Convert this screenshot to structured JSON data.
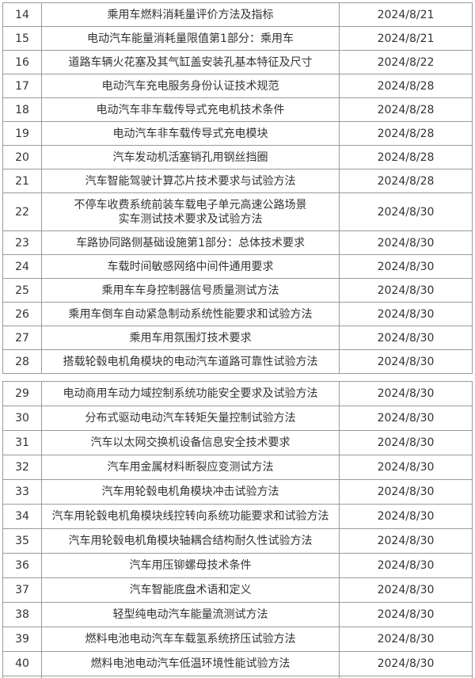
{
  "tables": [
    {
      "rows": [
        {
          "no": "14",
          "name": "乘用车燃料消耗量评价方法及指标",
          "date": "2024/8/21"
        },
        {
          "no": "15",
          "name": "电动汽车能量消耗量限值第1部分：乘用车",
          "date": "2024/8/21"
        },
        {
          "no": "16",
          "name": "道路车辆火花塞及其气缸盖安装孔基本特征及尺寸",
          "date": "2024/8/22"
        },
        {
          "no": "17",
          "name": "电动汽车充电服务身份认证技术规范",
          "date": "2024/8/28"
        },
        {
          "no": "18",
          "name": "电动汽车非车载传导式充电机技术条件",
          "date": "2024/8/28"
        },
        {
          "no": "19",
          "name": "电动汽车非车载传导式充电模块",
          "date": "2024/8/28"
        },
        {
          "no": "20",
          "name": "汽车发动机活塞销孔用钢丝挡圈",
          "date": "2024/8/28"
        },
        {
          "no": "21",
          "name": "汽车智能驾驶计算芯片技术要求与试验方法",
          "date": "2024/8/28"
        },
        {
          "no": "22",
          "name": "不停车收费系统前装车载电子单元高速公路场景",
          "name2": "实车测试技术要求及试验方法",
          "date": "2024/8/30"
        },
        {
          "no": "23",
          "name": "车路协同路侧基础设施第1部分：总体技术要求",
          "date": "2024/8/30"
        },
        {
          "no": "24",
          "name": "车载时间敏感网络中间件通用要求",
          "date": "2024/8/30"
        },
        {
          "no": "25",
          "name": "乘用车车身控制器信号质量测试方法",
          "date": "2024/8/30"
        },
        {
          "no": "26",
          "name": "乘用车倒车自动紧急制动系统性能要求和试验方法",
          "date": "2024/8/30"
        },
        {
          "no": "27",
          "name": "乘用车用氛围灯技术要求",
          "date": "2024/8/30"
        },
        {
          "no": "28",
          "name": "搭载轮毂电机角模块的电动汽车道路可靠性试验方法",
          "date": "2024/8/30"
        }
      ]
    },
    {
      "rows": [
        {
          "no": "29",
          "name": "电动商用车动力域控制系统功能安全要求及试验方法",
          "date": "2024/8/30"
        },
        {
          "no": "30",
          "name": "分布式驱动电动汽车转矩矢量控制试验方法",
          "date": "2024/8/30"
        },
        {
          "no": "31",
          "name": "汽车以太网交换机设备信息安全技术要求",
          "date": "2024/8/30"
        },
        {
          "no": "32",
          "name": "汽车用金属材料断裂应变测试方法",
          "date": "2024/8/30"
        },
        {
          "no": "33",
          "name": "汽车用轮毂电机角模块冲击试验方法",
          "date": "2024/8/30"
        },
        {
          "no": "34",
          "name": "汽车用轮毂电机角模块线控转向系统功能要求和试验方法",
          "date": "2024/8/30"
        },
        {
          "no": "35",
          "name": "汽车用轮毂电机角模块轴耦合结构耐久性试验方法",
          "date": "2024/8/30"
        },
        {
          "no": "36",
          "name": "汽车用压铆螺母技术条件",
          "date": "2024/8/30"
        },
        {
          "no": "37",
          "name": "汽车智能底盘术语和定义",
          "date": "2024/8/30"
        },
        {
          "no": "38",
          "name": "轻型纯电动汽车能量流测试方法",
          "date": "2024/8/30"
        },
        {
          "no": "39",
          "name": "燃料电池电动汽车车载氢系统挤压试验方法",
          "date": "2024/8/30"
        },
        {
          "no": "40",
          "name": "燃料电池电动汽车低温环境性能试验方法",
          "date": "2024/8/30"
        }
      ]
    }
  ]
}
